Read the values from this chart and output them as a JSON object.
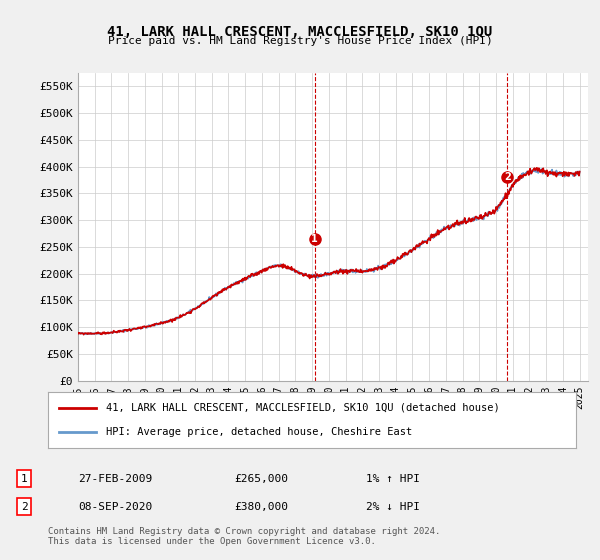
{
  "title": "41, LARK HALL CRESCENT, MACCLESFIELD, SK10 1QU",
  "subtitle": "Price paid vs. HM Land Registry's House Price Index (HPI)",
  "ylabel_ticks": [
    "£0",
    "£50K",
    "£100K",
    "£150K",
    "£200K",
    "£250K",
    "£300K",
    "£350K",
    "£400K",
    "£450K",
    "£500K",
    "£550K"
  ],
  "ytick_values": [
    0,
    50000,
    100000,
    150000,
    200000,
    250000,
    300000,
    350000,
    400000,
    450000,
    500000,
    550000
  ],
  "ylim": [
    0,
    575000
  ],
  "xlim_start": 1995.0,
  "xlim_end": 2025.5,
  "years": [
    1995,
    1996,
    1997,
    1998,
    1999,
    2000,
    2001,
    2002,
    2003,
    2004,
    2005,
    2006,
    2007,
    2008,
    2009,
    2010,
    2011,
    2012,
    2013,
    2014,
    2015,
    2016,
    2017,
    2018,
    2019,
    2020,
    2021,
    2022,
    2023,
    2024,
    2025
  ],
  "hpi_values": [
    88000,
    88500,
    90000,
    95000,
    100000,
    108000,
    118000,
    135000,
    155000,
    175000,
    190000,
    205000,
    215000,
    205000,
    195000,
    200000,
    205000,
    205000,
    210000,
    225000,
    245000,
    265000,
    285000,
    295000,
    305000,
    320000,
    365000,
    390000,
    390000,
    385000,
    390000
  ],
  "price_paid_dates": [
    2009.16,
    2020.68
  ],
  "price_paid_values": [
    265000,
    380000
  ],
  "marker_labels": [
    "1",
    "2"
  ],
  "marker1_x": 2009.16,
  "marker1_y": 265000,
  "marker2_x": 2020.68,
  "marker2_y": 380000,
  "dashed_line1_x": 2009.16,
  "dashed_line2_x": 2020.68,
  "legend_line1": "41, LARK HALL CRESCENT, MACCLESFIELD, SK10 1QU (detached house)",
  "legend_line2": "HPI: Average price, detached house, Cheshire East",
  "table_row1_num": "1",
  "table_row1_date": "27-FEB-2009",
  "table_row1_price": "£265,000",
  "table_row1_hpi": "1% ↑ HPI",
  "table_row2_num": "2",
  "table_row2_date": "08-SEP-2020",
  "table_row2_price": "£380,000",
  "table_row2_hpi": "2% ↓ HPI",
  "footnote": "Contains HM Land Registry data © Crown copyright and database right 2024.\nThis data is licensed under the Open Government Licence v3.0.",
  "bg_color": "#f0f0f0",
  "plot_bg_color": "#ffffff",
  "grid_color": "#cccccc",
  "line_color_red": "#cc0000",
  "line_color_blue": "#6699cc",
  "marker_color": "#cc0000"
}
